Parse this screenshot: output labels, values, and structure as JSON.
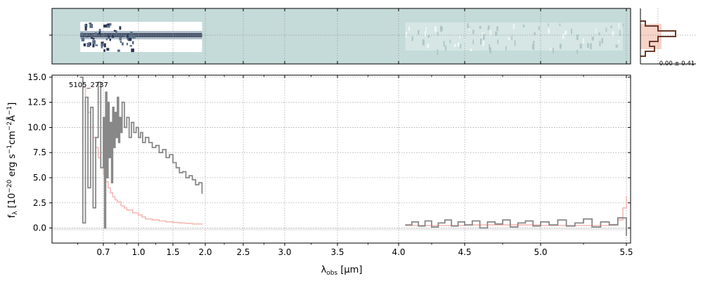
{
  "chart_data": [
    {
      "type": "heatmap",
      "panel": "2d-spectrum",
      "description_of_content": "2D dispersed spectrum cutout, bright trace in the prism segment, faint trace in the grating segment",
      "x_ticks": [
        "0.7",
        "1.0",
        "1.5",
        "2.0",
        "2.5",
        "3.0",
        "3.5",
        "4.0",
        "4.5",
        "5.0",
        "5.5"
      ],
      "background_color": "#c4dbd9",
      "trace_colors": [
        "#ffffff",
        "#2a3550",
        "#7f94a8"
      ]
    },
    {
      "type": "line",
      "panel": "1d-spectrum",
      "label": "5105_2737",
      "xlabel": "λobs [μm]",
      "ylabel": "fλ [10^-20 erg s^-1 cm^-2 Å^-1]",
      "x_ticks": [
        "0.7",
        "1.0",
        "1.5",
        "2.0",
        "2.5",
        "3.0",
        "3.5",
        "4.0",
        "4.5",
        "5.0",
        "5.5"
      ],
      "y_ticks": [
        "0.0",
        "2.5",
        "5.0",
        "7.5",
        "10.0",
        "12.5",
        "15.0"
      ],
      "ylim": [
        -1.5,
        15.2
      ],
      "grid": true,
      "series": [
        {
          "color": "#888888",
          "segments": [
            {
              "x": [
                0.61,
                0.62,
                0.63,
                0.64,
                0.65,
                0.66,
                0.67,
                0.68,
                0.69,
                0.7,
                0.71,
                0.72,
                0.73,
                0.74,
                0.75,
                0.76,
                0.77,
                0.78,
                0.79,
                0.8,
                0.81,
                0.82,
                0.83,
                0.84,
                0.85,
                0.86,
                0.88,
                0.9,
                0.92,
                0.94,
                0.96,
                0.98,
                1.0,
                1.03,
                1.06,
                1.1,
                1.15,
                1.2,
                1.25,
                1.3,
                1.35,
                1.4,
                1.45,
                1.5,
                1.55,
                1.6,
                1.65,
                1.7,
                1.75,
                1.8,
                1.85,
                1.9,
                1.95
              ],
              "y": [
                15.0,
                0.5,
                13.0,
                4.0,
                12.0,
                2.0,
                9.0,
                14.5,
                6.0,
                11.0,
                0.0,
                13.5,
                5.0,
                12.5,
                7.0,
                10.5,
                4.5,
                12.0,
                8.0,
                11.5,
                9.0,
                13.0,
                8.5,
                11.0,
                9.5,
                12.5,
                10.0,
                11.0,
                9.0,
                10.5,
                9.5,
                10.0,
                9.0,
                9.5,
                8.5,
                9.0,
                8.5,
                8.0,
                8.2,
                7.5,
                7.8,
                7.0,
                7.3,
                6.5,
                6.0,
                5.5,
                5.6,
                5.0,
                5.2,
                4.8,
                4.3,
                4.5,
                3.4
              ]
            },
            {
              "x": [
                4.05,
                4.1,
                4.15,
                4.2,
                4.25,
                4.3,
                4.35,
                4.4,
                4.45,
                4.5,
                4.55,
                4.6,
                4.65,
                4.7,
                4.75,
                4.8,
                4.85,
                4.9,
                4.95,
                5.0,
                5.05,
                5.1,
                5.15,
                5.2,
                5.25,
                5.3,
                5.35,
                5.4,
                5.45,
                5.5
              ],
              "y": [
                0.3,
                0.6,
                0.2,
                0.7,
                0.1,
                0.5,
                0.8,
                0.2,
                0.6,
                0.3,
                0.7,
                0.0,
                0.6,
                0.4,
                0.8,
                0.1,
                0.5,
                0.7,
                0.2,
                0.6,
                0.3,
                0.8,
                0.2,
                0.5,
                0.9,
                0.1,
                0.6,
                0.3,
                1.0,
                -0.8
              ]
            }
          ]
        },
        {
          "color": "#f6b9b5",
          "segments": [
            {
              "x": [
                0.61,
                0.62,
                0.63,
                0.64,
                0.65,
                0.66,
                0.67,
                0.68,
                0.69,
                0.7,
                0.72,
                0.74,
                0.76,
                0.78,
                0.8,
                0.82,
                0.85,
                0.88,
                0.9,
                0.95,
                1.0,
                1.05,
                1.1,
                1.2,
                1.3,
                1.4,
                1.5,
                1.6,
                1.7,
                1.8,
                1.9,
                1.95
              ],
              "y": [
                15.0,
                14.0,
                13.0,
                11.5,
                10.0,
                9.0,
                8.0,
                7.0,
                6.0,
                5.3,
                4.6,
                4.0,
                3.5,
                3.1,
                2.8,
                2.6,
                2.2,
                2.0,
                1.8,
                1.5,
                1.3,
                1.1,
                0.9,
                0.8,
                0.7,
                0.6,
                0.55,
                0.5,
                0.45,
                0.4,
                0.4,
                0.35
              ]
            },
            {
              "x": [
                4.05,
                4.5,
                5.0,
                5.4,
                5.45,
                5.48,
                5.5
              ],
              "y": [
                0.25,
                0.3,
                0.25,
                0.35,
                0.8,
                2.0,
                3.2
              ]
            }
          ]
        }
      ]
    },
    {
      "type": "bar",
      "panel": "residual-histogram",
      "annotation": "0.00 ± 0.41",
      "colors": {
        "fill": "#f7d3c8",
        "step": "#6b3a2a"
      }
    }
  ]
}
